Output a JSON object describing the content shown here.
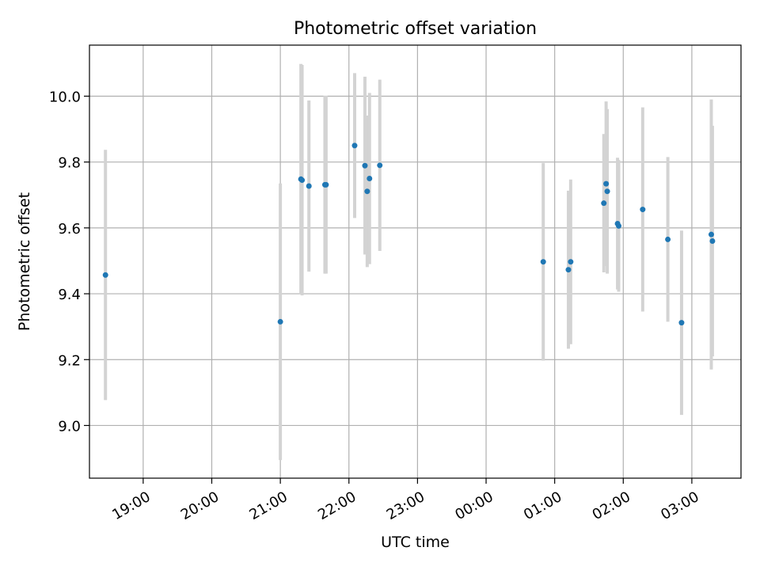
{
  "chart_data": {
    "type": "scatter",
    "title": "Photometric offset variation",
    "xlabel": "UTC time",
    "ylabel": "Photometric offset",
    "grid": true,
    "x_ticks": [
      "19:00",
      "20:00",
      "21:00",
      "22:00",
      "23:00",
      "00:00",
      "01:00",
      "02:00",
      "03:00"
    ],
    "y_ticks": [
      "9.0",
      "9.2",
      "9.4",
      "9.6",
      "9.8",
      "10.0"
    ],
    "xlim": [
      "18:13",
      "03:43"
    ],
    "ylim": [
      8.84,
      10.155
    ],
    "colors": {
      "point": "#1f77b4",
      "errorbar": "#d3d3d3",
      "grid": "#b0b0b0"
    },
    "points": [
      {
        "x": "18:27",
        "y": 9.457,
        "err": 0.38
      },
      {
        "x": "21:00",
        "y": 9.315,
        "err": 0.42
      },
      {
        "x": "21:18",
        "y": 9.748,
        "err": 0.35
      },
      {
        "x": "21:19",
        "y": 9.745,
        "err": 0.35
      },
      {
        "x": "21:25",
        "y": 9.727,
        "err": 0.26
      },
      {
        "x": "21:39",
        "y": 9.731,
        "err": 0.27
      },
      {
        "x": "21:40",
        "y": 9.731,
        "err": 0.27
      },
      {
        "x": "22:05",
        "y": 9.85,
        "err": 0.22
      },
      {
        "x": "22:14",
        "y": 9.789,
        "err": 0.27
      },
      {
        "x": "22:16",
        "y": 9.711,
        "err": 0.23
      },
      {
        "x": "22:18",
        "y": 9.75,
        "err": 0.26
      },
      {
        "x": "22:27",
        "y": 9.79,
        "err": 0.26
      },
      {
        "x": "00:50",
        "y": 9.497,
        "err": 0.3
      },
      {
        "x": "01:12",
        "y": 9.473,
        "err": 0.24
      },
      {
        "x": "01:14",
        "y": 9.497,
        "err": 0.25
      },
      {
        "x": "01:43",
        "y": 9.675,
        "err": 0.21
      },
      {
        "x": "01:45",
        "y": 9.734,
        "err": 0.25
      },
      {
        "x": "01:46",
        "y": 9.711,
        "err": 0.25
      },
      {
        "x": "01:55",
        "y": 9.613,
        "err": 0.2
      },
      {
        "x": "01:56",
        "y": 9.606,
        "err": 0.2
      },
      {
        "x": "02:17",
        "y": 9.656,
        "err": 0.31
      },
      {
        "x": "02:39",
        "y": 9.565,
        "err": 0.25
      },
      {
        "x": "02:51",
        "y": 9.312,
        "err": 0.28
      },
      {
        "x": "03:17",
        "y": 9.58,
        "err": 0.41
      },
      {
        "x": "03:18",
        "y": 9.56,
        "err": 0.35
      }
    ]
  }
}
